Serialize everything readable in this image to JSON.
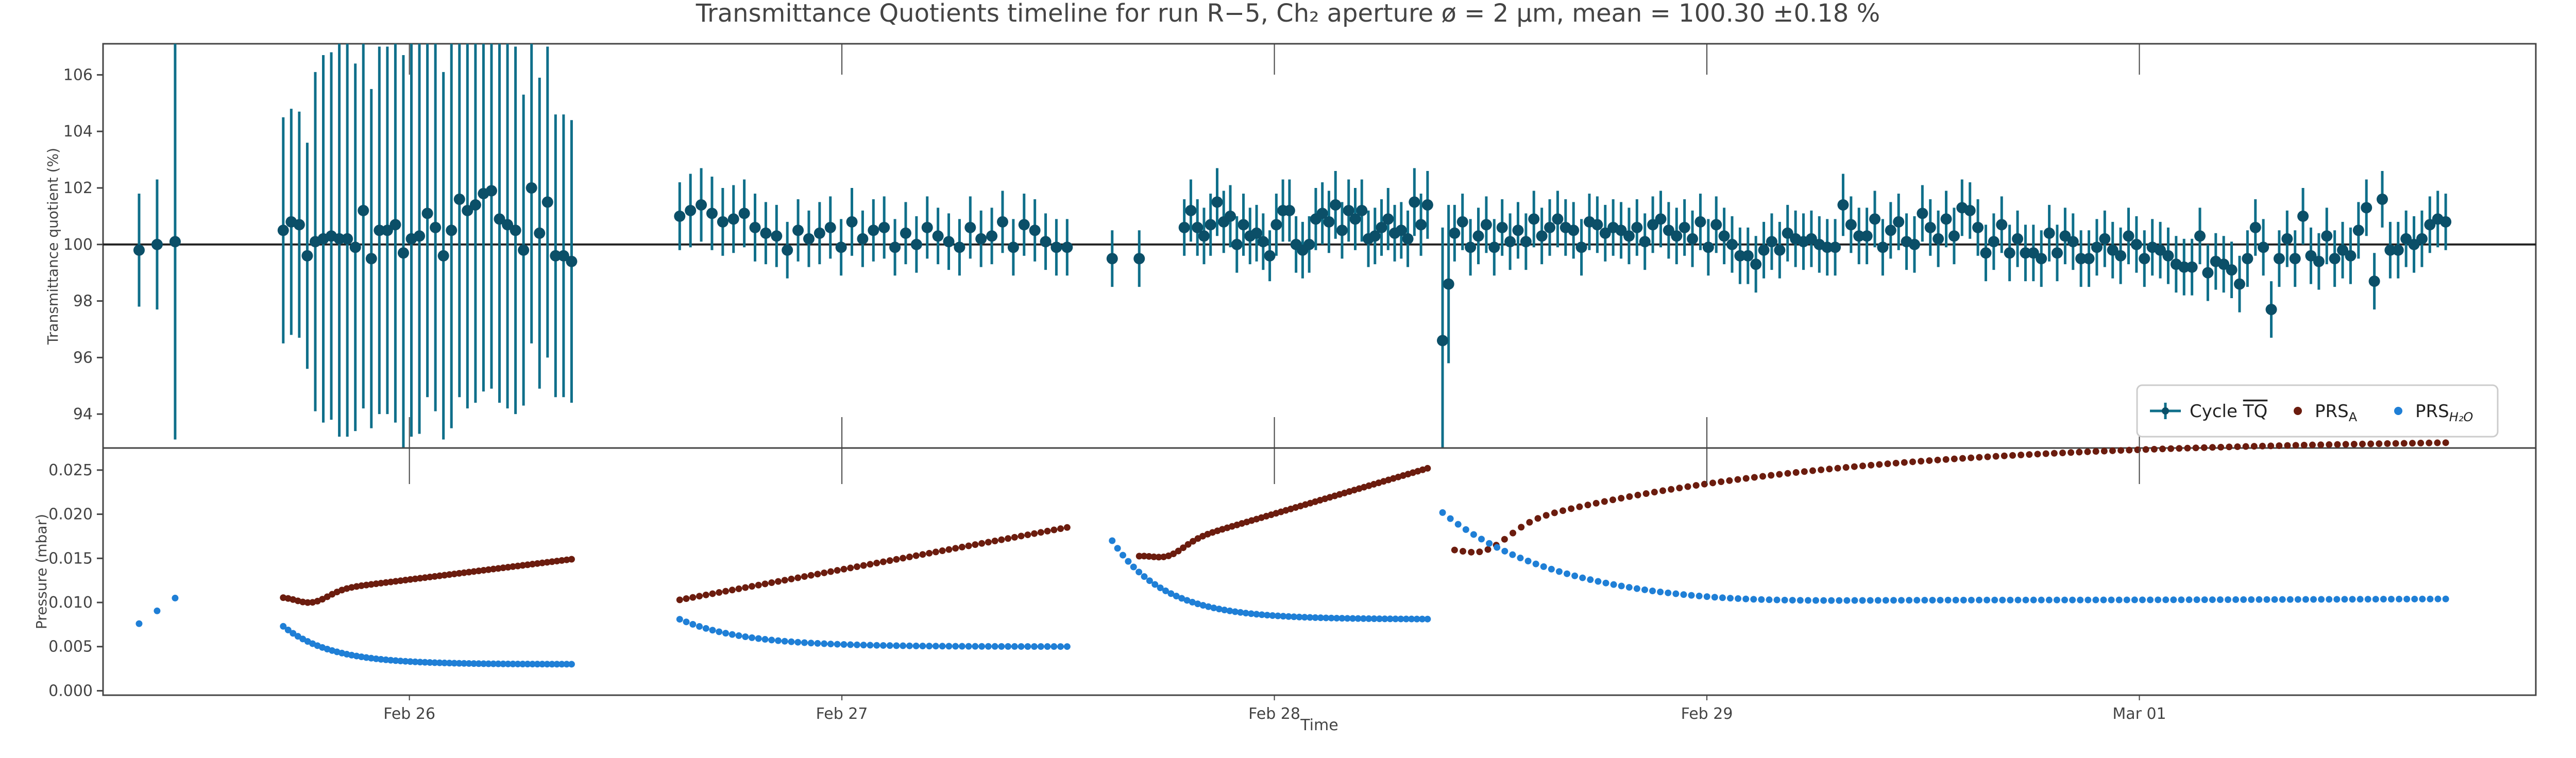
{
  "figure": {
    "title": "Transmittance Quotients timeline for run R−5, Ch₂ aperture ø = 2 µm, mean = 100.30 ±0.18 %"
  },
  "colors": {
    "tq": "#0f6f8a",
    "tq_marker": "#0b4f68",
    "prs_a": "#6b1c0e",
    "prs_h2o": "#1f7fd6",
    "axis": "#444444",
    "grid": "#e6e6e6"
  },
  "chart_data": [
    {
      "type": "scatter",
      "id": "tq",
      "xlabel": "",
      "ylabel": "Transmittance quotient (%)",
      "ylim": [
        92.8,
        107.1
      ],
      "yticks": [
        94,
        96,
        98,
        100,
        102,
        104,
        106
      ],
      "x_is_date": true,
      "reference_line": 100,
      "legend_position": "lower-right",
      "series": [
        {
          "name": "Cycle TQ",
          "kind": "errorbar",
          "segments": [
            {
              "t_start": "2024-02-25T09:00",
              "t_end": "2024-02-25T11:00",
              "y": [
                99.8,
                100.0,
                100.1
              ],
              "err": [
                2.0,
                2.3,
                7.0
              ]
            },
            {
              "t_start": "2024-02-25T17:00",
              "t_end": "2024-02-26T09:00",
              "y": [
                100.5,
                100.8,
                100.7,
                99.6,
                100.1,
                100.2,
                100.3,
                100.2,
                100.2,
                99.9,
                101.2,
                99.5,
                100.5,
                100.5,
                100.7,
                99.7,
                100.2,
                100.3,
                101.1,
                100.6,
                99.6,
                100.5,
                101.6,
                101.2,
                101.4,
                101.8,
                101.9,
                100.9,
                100.7,
                100.5,
                99.8,
                102.0,
                100.4,
                101.5,
                99.6,
                99.6,
                99.4
              ],
              "err": [
                4.0,
                4.0,
                4.0,
                4.0,
                6.0,
                6.5,
                6.5,
                7.0,
                7.0,
                6.5,
                7.0,
                6.0,
                6.5,
                6.5,
                7.0,
                7.0,
                7.0,
                7.0,
                6.5,
                6.5,
                6.5,
                7.0,
                7.0,
                7.0,
                7.0,
                7.0,
                7.0,
                6.5,
                6.5,
                6.5,
                5.5,
                5.5,
                5.5,
                5.5,
                5.0,
                5.0,
                5.0
              ]
            },
            {
              "t_start": "2024-02-26T15:00",
              "t_end": "2024-02-27T12:30",
              "y": [
                101.0,
                101.2,
                101.4,
                101.1,
                100.8,
                100.9,
                101.1,
                100.6,
                100.4,
                100.3,
                99.8,
                100.5,
                100.2,
                100.4,
                100.6,
                99.9,
                100.8,
                100.2,
                100.5,
                100.6,
                99.9,
                100.4,
                100.0,
                100.6,
                100.3,
                100.1,
                99.9,
                100.6,
                100.2,
                100.3,
                100.8,
                99.9,
                100.7,
                100.5,
                100.1,
                99.9,
                99.9
              ],
              "err": [
                1.2,
                1.3,
                1.3,
                1.3,
                1.2,
                1.2,
                1.2,
                1.2,
                1.1,
                1.1,
                1.0,
                1.1,
                1.0,
                1.1,
                1.1,
                1.0,
                1.2,
                1.0,
                1.1,
                1.1,
                1.0,
                1.1,
                1.0,
                1.1,
                1.0,
                1.0,
                1.0,
                1.1,
                1.0,
                1.0,
                1.1,
                1.0,
                1.1,
                1.1,
                1.0,
                1.0,
                1.0
              ]
            },
            {
              "t_start": "2024-02-27T15:00",
              "t_end": "2024-02-27T16:30",
              "y": [
                99.5,
                99.5
              ],
              "err": [
                1.0,
                1.0
              ]
            },
            {
              "t_start": "2024-02-27T19:00",
              "t_end": "2024-02-28T08:30",
              "y": [
                100.6,
                101.2,
                100.6,
                100.3,
                100.7,
                101.5,
                100.8,
                101.0,
                100.0,
                100.7,
                100.3,
                100.4,
                100.1,
                99.6,
                100.7,
                101.2,
                101.2,
                100.0,
                99.8,
                100.0,
                100.9,
                101.1,
                100.8,
                101.4,
                100.5,
                101.2,
                100.9,
                101.2,
                100.2,
                100.3,
                100.6,
                100.9,
                100.4,
                100.5,
                100.2,
                101.5,
                100.7,
                101.4
              ],
              "err": [
                1.0,
                1.1,
                1.0,
                1.0,
                1.1,
                1.2,
                1.1,
                1.1,
                1.0,
                1.1,
                1.0,
                1.0,
                1.0,
                0.9,
                1.1,
                1.1,
                1.1,
                1.0,
                1.0,
                1.0,
                1.1,
                1.1,
                1.1,
                1.2,
                1.0,
                1.1,
                1.1,
                1.1,
                1.0,
                1.0,
                1.0,
                1.1,
                1.0,
                1.0,
                1.0,
                1.2,
                1.1,
                1.2
              ]
            },
            {
              "t_start": "2024-02-28T09:20",
              "t_end": "2024-02-28T09:40",
              "y": [
                96.6,
                98.6
              ],
              "err": [
                4.0,
                2.8
              ]
            },
            {
              "t_start": "2024-02-28T10:00",
              "t_end": "2024-03-01T17:00",
              "y": [
                100.4,
                100.8,
                99.9,
                100.3,
                100.7,
                99.9,
                100.6,
                100.1,
                100.5,
                100.1,
                100.9,
                100.3,
                100.6,
                100.9,
                100.6,
                100.5,
                99.9,
                100.8,
                100.7,
                100.4,
                100.6,
                100.5,
                100.3,
                100.6,
                100.1,
                100.7,
                100.9,
                100.5,
                100.3,
                100.6,
                100.2,
                100.8,
                99.9,
                100.7,
                100.3,
                100.0,
                99.6,
                99.6,
                99.3,
                99.8,
                100.1,
                99.8,
                100.4,
                100.2,
                100.1,
                100.2,
                100.0,
                99.9,
                99.9,
                101.4,
                100.7,
                100.3,
                100.3,
                100.9,
                99.9,
                100.5,
                100.8,
                100.1,
                100.0,
                101.1,
                100.6,
                100.2,
                100.9,
                100.3,
                101.3,
                101.2,
                100.6,
                99.7,
                100.1,
                100.7,
                99.7,
                100.2,
                99.7,
                99.7,
                99.5,
                100.4,
                99.7,
                100.3,
                100.1,
                99.5,
                99.5,
                99.9,
                100.2,
                99.8,
                99.6,
                100.3,
                100.0,
                99.5,
                99.9,
                99.8,
                99.6,
                99.3,
                99.2,
                99.2,
                100.3,
                99.0,
                99.4,
                99.3,
                99.1,
                98.6,
                99.5,
                100.6,
                99.9,
                97.7,
                99.5,
                100.2,
                99.5,
                101.0,
                99.6,
                99.4,
                100.3,
                99.5,
                99.8,
                99.6,
                100.5,
                101.3,
                98.7,
                101.6,
                99.8,
                99.8,
                100.2,
                100.0,
                100.2,
                100.7,
                100.9,
                100.8
              ],
              "err": [
                1.0,
                1.0,
                1.0,
                1.0,
                1.0,
                1.0,
                1.0,
                1.0,
                1.0,
                1.0,
                1.0,
                1.0,
                1.0,
                1.0,
                1.0,
                1.0,
                1.0,
                1.0,
                1.0,
                1.0,
                1.0,
                1.0,
                1.0,
                1.0,
                1.0,
                1.0,
                1.0,
                1.0,
                1.0,
                1.0,
                1.0,
                1.0,
                1.0,
                1.0,
                1.0,
                1.0,
                1.0,
                1.0,
                1.0,
                1.0,
                1.0,
                1.0,
                1.0,
                1.0,
                1.0,
                1.0,
                1.0,
                1.0,
                1.0,
                1.1,
                1.0,
                1.0,
                1.0,
                1.0,
                1.0,
                1.0,
                1.0,
                1.0,
                1.0,
                1.0,
                1.0,
                1.0,
                1.0,
                1.0,
                1.0,
                1.0,
                1.0,
                1.0,
                1.0,
                1.0,
                1.0,
                1.0,
                1.0,
                1.0,
                1.0,
                1.0,
                1.0,
                1.0,
                1.0,
                1.0,
                1.0,
                1.0,
                1.0,
                1.0,
                1.0,
                1.0,
                1.0,
                1.0,
                1.0,
                1.0,
                1.0,
                1.0,
                1.0,
                1.0,
                1.0,
                1.0,
                1.0,
                1.0,
                1.0,
                1.0,
                1.0,
                1.0,
                1.0,
                1.0,
                1.0,
                1.0,
                1.0,
                1.0,
                1.0,
                1.0,
                1.0,
                1.0,
                1.0,
                1.0,
                1.0,
                1.0,
                1.0,
                1.0,
                1.0,
                1.0,
                1.0,
                1.0,
                1.0,
                1.0,
                1.0,
                1.0
              ]
            }
          ]
        }
      ]
    },
    {
      "type": "scatter",
      "id": "pressure",
      "xlabel": "Time",
      "ylabel": "Pressure (mbar)",
      "ylim": [
        -0.0005,
        0.0275
      ],
      "yticks": [
        "0.000",
        "0.005",
        "0.010",
        "0.015",
        "0.020",
        "0.025"
      ],
      "x_is_date": true,
      "x_tick_labels": [
        "Feb 26",
        "Feb 27",
        "Feb 28",
        "Feb 29",
        "Mar 01"
      ],
      "x_tick_dates": [
        "2024-02-26",
        "2024-02-27",
        "2024-02-28",
        "2024-02-29",
        "2024-03-01"
      ],
      "xlim": [
        "2024-02-25T07:00",
        "2024-03-01T22:00"
      ],
      "series": [
        {
          "name": "PRS_A",
          "segments": [
            {
              "t_start": "2024-02-25T17:00",
              "t_end": "2024-02-26T09:00",
              "y_start": 0.0108,
              "y_end": 0.0149,
              "n": 60,
              "shape": "dip"
            },
            {
              "t_start": "2024-02-26T15:00",
              "t_end": "2024-02-27T12:30",
              "y_start": 0.0103,
              "y_end": 0.0185,
              "n": 60,
              "shape": "linear"
            },
            {
              "t_start": "2024-02-27T16:30",
              "t_end": "2024-02-28T08:30",
              "y_start": 0.0155,
              "y_end": 0.0252,
              "n": 60,
              "shape": "dip"
            },
            {
              "t_start": "2024-02-28T10:00",
              "t_end": "2024-03-01T17:00",
              "y_start": 0.017,
              "y_end": 0.0281,
              "n": 120,
              "shape": "dip-sat"
            }
          ]
        },
        {
          "name": "PRS_H2O",
          "segments": [
            {
              "t_start": "2024-02-25T09:00",
              "t_end": "2024-02-25T11:00",
              "y_start": 0.0076,
              "y_end": 0.0105,
              "n": 3,
              "shape": "linear"
            },
            {
              "t_start": "2024-02-25T17:00",
              "t_end": "2024-02-26T09:00",
              "y_start": 0.0073,
              "y_end": 0.003,
              "n": 60,
              "shape": "decay"
            },
            {
              "t_start": "2024-02-26T15:00",
              "t_end": "2024-02-27T12:30",
              "y_start": 0.0081,
              "y_end": 0.005,
              "n": 60,
              "shape": "decay"
            },
            {
              "t_start": "2024-02-27T15:00",
              "t_end": "2024-02-28T08:30",
              "y_start": 0.017,
              "y_end": 0.0081,
              "n": 60,
              "shape": "decay"
            },
            {
              "t_start": "2024-02-28T09:20",
              "t_end": "2024-03-01T17:00",
              "y_start": 0.0198,
              "y_end": 0.01,
              "n": 130,
              "shape": "decay-rise"
            }
          ]
        }
      ]
    }
  ],
  "legend": {
    "items": [
      {
        "label": "Cycle ",
        "overline": "TQ",
        "kind": "errorbar"
      },
      {
        "label": "PRS",
        "sub": "A",
        "kind": "dot-a"
      },
      {
        "label": "PRS",
        "sub": "H₂O",
        "kind": "dot-h"
      }
    ]
  }
}
